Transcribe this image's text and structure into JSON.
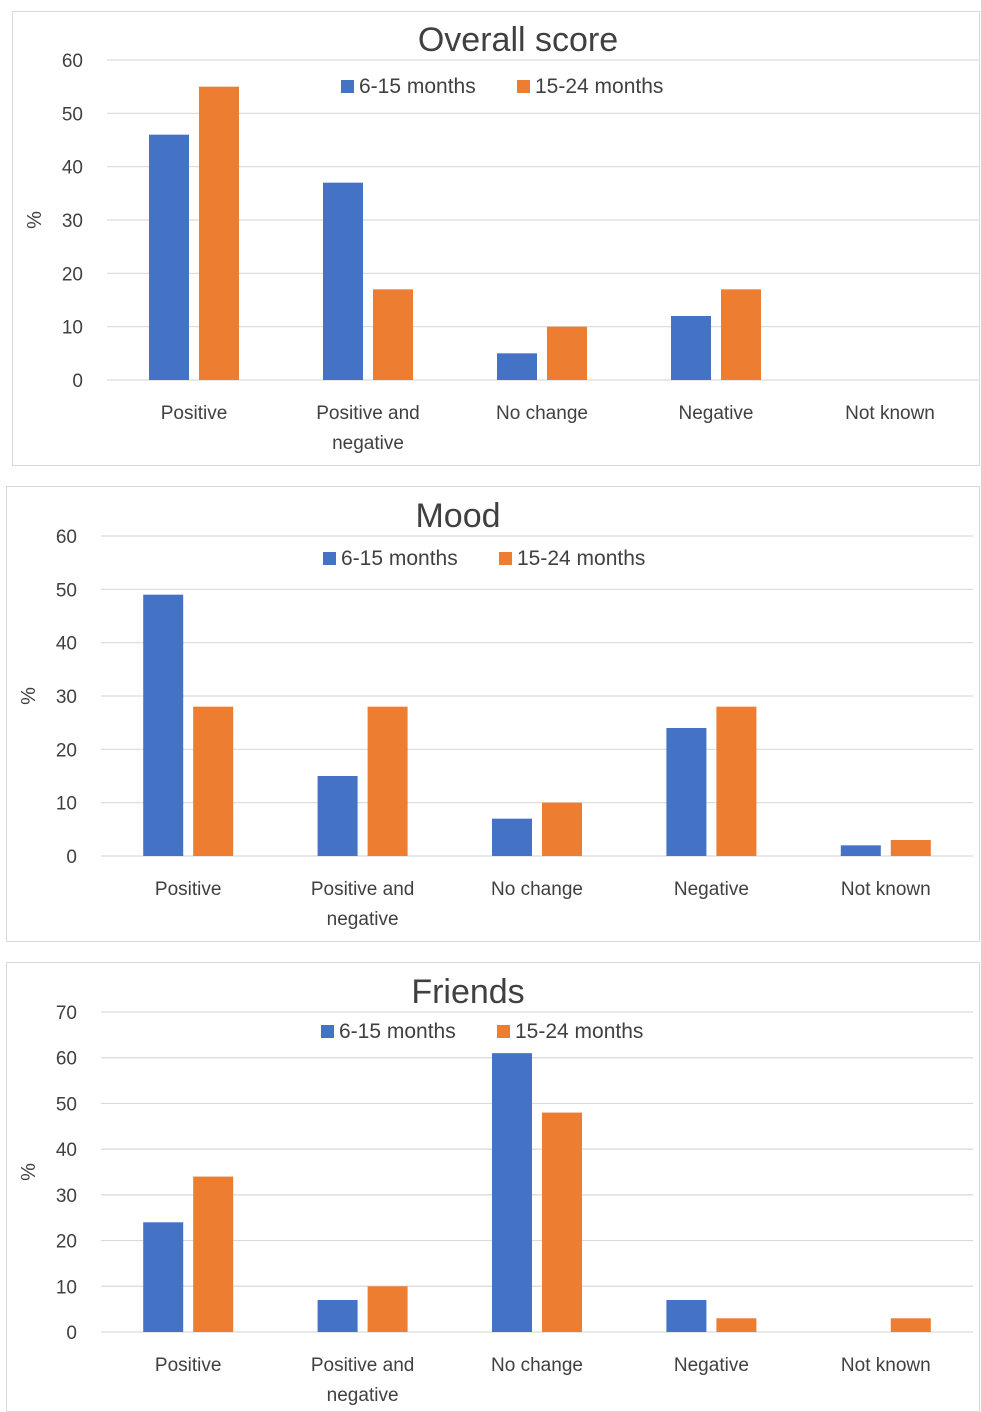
{
  "colors": {
    "series1": "#4472c4",
    "series2": "#ed7d31",
    "grid": "#d9d9d9",
    "text": "#404040"
  },
  "chart_data": [
    {
      "type": "bar",
      "title": "Overall score",
      "ylabel": "%",
      "xlabel": "",
      "ylim": [
        0,
        60
      ],
      "yticks": [
        "0",
        "10",
        "20",
        "30",
        "40",
        "50",
        "60"
      ],
      "grid": true,
      "legend": "top",
      "categories": [
        "Positive",
        "Positive and negative",
        "No change",
        "Negative",
        "Not known"
      ],
      "category_lines": [
        [
          "Positive"
        ],
        [
          "Positive and",
          "negative"
        ],
        [
          "No change"
        ],
        [
          "Negative"
        ],
        [
          "Not known"
        ]
      ],
      "series": [
        {
          "name": "6-15 months",
          "values": [
            46,
            37,
            5,
            12,
            0
          ]
        },
        {
          "name": "15-24 months",
          "values": [
            55,
            17,
            10,
            17,
            0
          ]
        }
      ]
    },
    {
      "type": "bar",
      "title": "Mood",
      "ylabel": "%",
      "xlabel": "",
      "ylim": [
        0,
        60
      ],
      "yticks": [
        "0",
        "10",
        "20",
        "30",
        "40",
        "50",
        "60"
      ],
      "grid": true,
      "legend": "top",
      "categories": [
        "Positive",
        "Positive and negative",
        "No change",
        "Negative",
        "Not known"
      ],
      "category_lines": [
        [
          "Positive"
        ],
        [
          "Positive and",
          "negative"
        ],
        [
          "No change"
        ],
        [
          "Negative"
        ],
        [
          "Not known"
        ]
      ],
      "series": [
        {
          "name": "6-15 months",
          "values": [
            49,
            15,
            7,
            24,
            2
          ]
        },
        {
          "name": "15-24 months",
          "values": [
            28,
            28,
            10,
            28,
            3
          ]
        }
      ]
    },
    {
      "type": "bar",
      "title": "Friends",
      "ylabel": "%",
      "xlabel": "",
      "ylim": [
        0,
        70
      ],
      "yticks": [
        "0",
        "10",
        "20",
        "30",
        "40",
        "50",
        "60",
        "70"
      ],
      "grid": true,
      "legend": "top",
      "categories": [
        "Positive",
        "Positive and negative",
        "No change",
        "Negative",
        "Not known"
      ],
      "category_lines": [
        [
          "Positive"
        ],
        [
          "Positive and",
          "negative"
        ],
        [
          "No change"
        ],
        [
          "Negative"
        ],
        [
          "Not known"
        ]
      ],
      "series": [
        {
          "name": "6-15 months",
          "values": [
            24,
            7,
            61,
            7,
            0
          ]
        },
        {
          "name": "15-24 months",
          "values": [
            34,
            10,
            48,
            3,
            3
          ]
        }
      ]
    }
  ]
}
